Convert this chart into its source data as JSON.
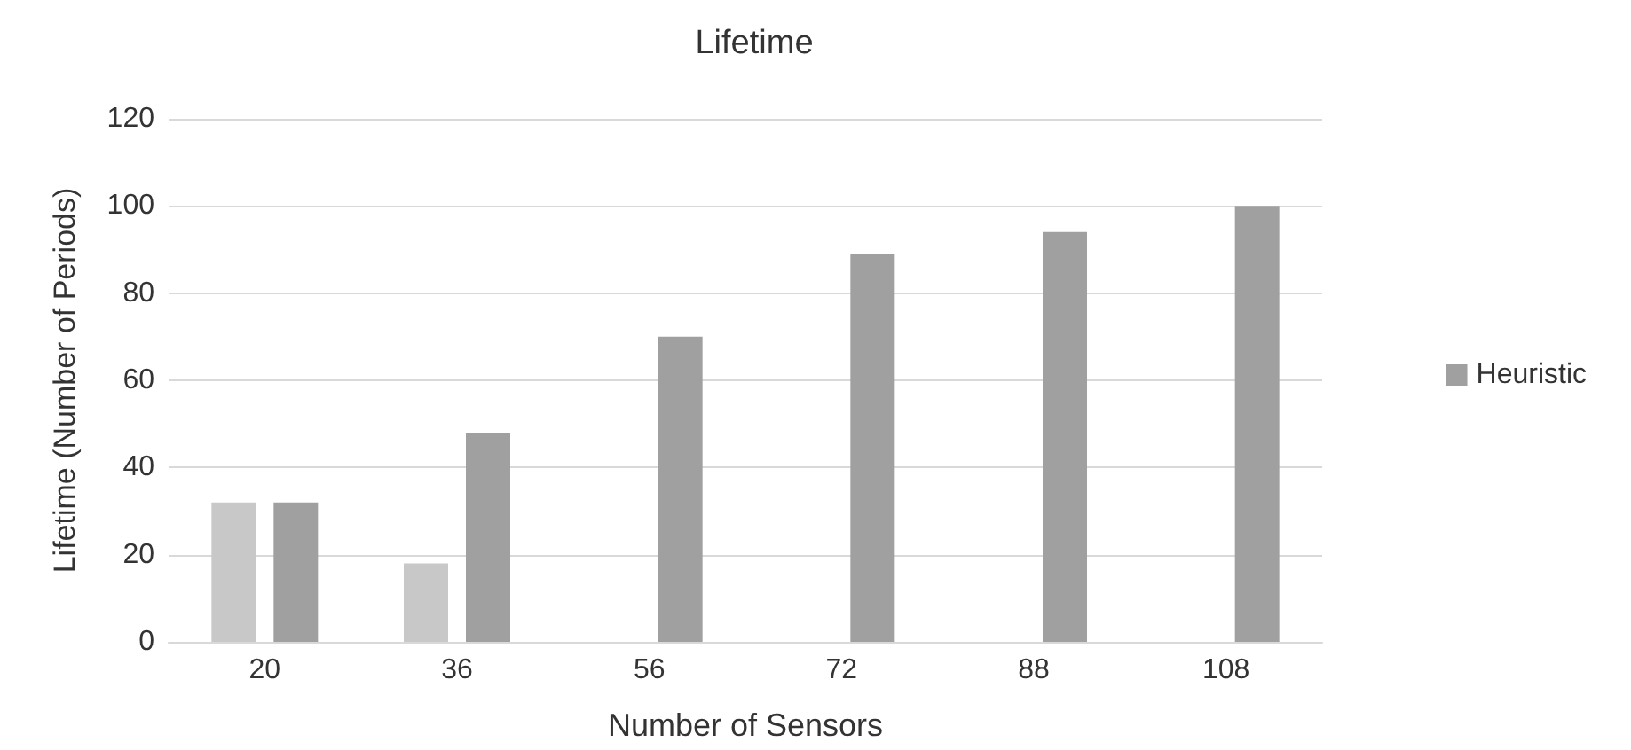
{
  "chart_data": {
    "type": "bar",
    "title": "Lifetime",
    "xlabel": "Number of Sensors",
    "ylabel": "Lifetime (Number of Periods)",
    "categories": [
      "20",
      "36",
      "56",
      "72",
      "88",
      "108"
    ],
    "series": [
      {
        "color": "#c8c8c8",
        "values": [
          32,
          18,
          null,
          null,
          null,
          null
        ]
      },
      {
        "name": "Heuristic",
        "color": "#a0a0a0",
        "values": [
          32,
          48,
          70,
          89,
          94,
          100
        ]
      }
    ],
    "ylim": [
      0,
      120
    ],
    "yticks": [
      0,
      20,
      40,
      60,
      80,
      100,
      120
    ],
    "grid": "y",
    "legend": "right"
  }
}
